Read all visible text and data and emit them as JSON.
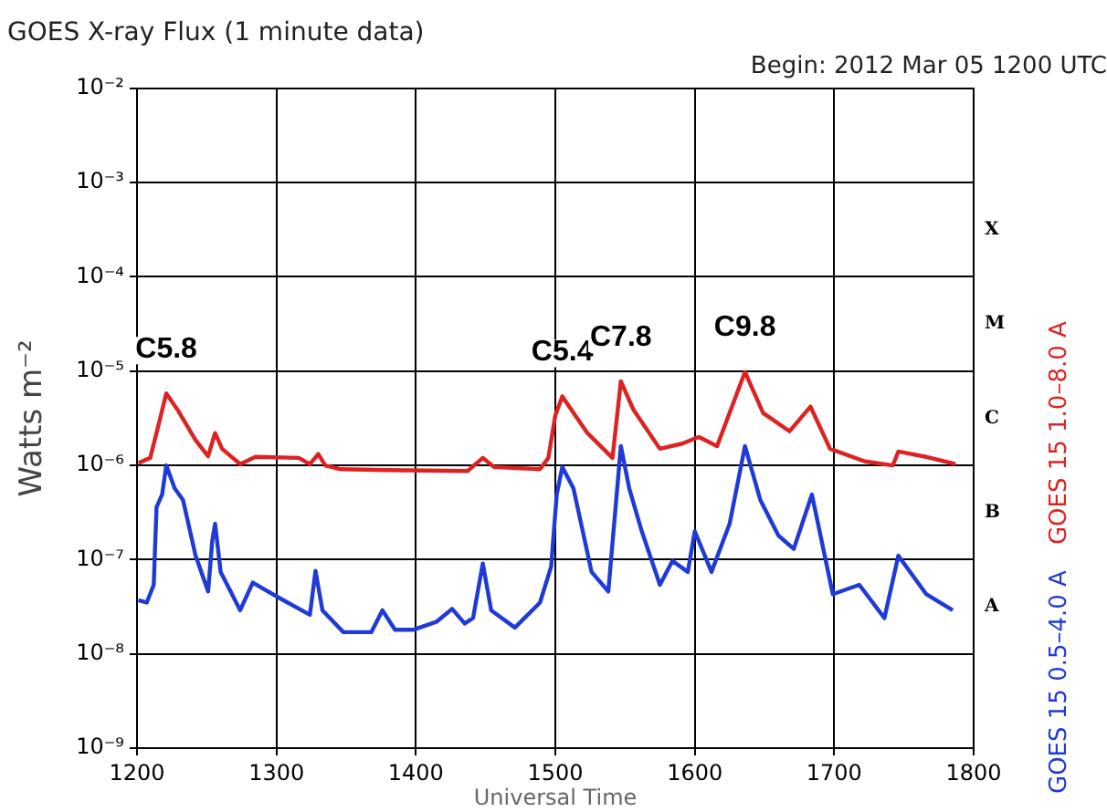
{
  "chart_data": {
    "type": "line",
    "title": "GOES X-ray Flux (1 minute data)",
    "subtitle": "Begin: 2012 Mar 05 1200 UTC",
    "xlabel": "Universal Time",
    "ylabel": "Watts m⁻²",
    "log": "y",
    "grid": true,
    "legend": "right",
    "xlim": [
      1200,
      1800
    ],
    "xticks": [
      1200,
      1300,
      1400,
      1500,
      1600,
      1700,
      1800
    ],
    "ylim": [
      1e-09,
      0.01
    ],
    "yticks": [
      {
        "value": 1e-09,
        "label": "10⁻⁹"
      },
      {
        "value": 1e-08,
        "label": "10⁻⁸"
      },
      {
        "value": 1e-07,
        "label": "10⁻⁷"
      },
      {
        "value": 1e-06,
        "label": "10⁻⁶"
      },
      {
        "value": 1e-05,
        "label": "10⁻⁵"
      },
      {
        "value": 0.0001,
        "label": "10⁻⁴"
      },
      {
        "value": 0.001,
        "label": "10⁻³"
      },
      {
        "value": 0.01,
        "label": "10⁻²"
      }
    ],
    "series": [
      {
        "name": "GOES 15 1.0–8.0 A",
        "color": "#dd2222",
        "x": [
          1201,
          1209.5,
          1216,
          1221,
          1229,
          1242,
          1251,
          1256,
          1261,
          1274,
          1285,
          1316,
          1324,
          1330,
          1335,
          1346,
          1380,
          1437,
          1448,
          1456,
          1489,
          1495,
          1500,
          1505,
          1523,
          1541,
          1547,
          1556,
          1575,
          1591,
          1603,
          1616,
          1636,
          1649,
          1668,
          1683,
          1697,
          1722,
          1742,
          1746,
          1766,
          1787
        ],
        "values": [
          1.06e-06,
          1.2e-06,
          2.9e-06,
          5.8e-06,
          3.9e-06,
          1.85e-06,
          1.25e-06,
          2.2e-06,
          1.5e-06,
          1.03e-06,
          1.23e-06,
          1.2e-06,
          1.03e-06,
          1.32e-06,
          1e-06,
          9.1e-07,
          8.9e-07,
          8.7e-07,
          1.2e-06,
          9.6e-07,
          9.1e-07,
          1.2e-06,
          3.4e-06,
          5.4e-06,
          2.2e-06,
          1.2e-06,
          7.8e-06,
          3.9e-06,
          1.5e-06,
          1.7e-06,
          2e-06,
          1.6e-06,
          9.8e-06,
          3.6e-06,
          2.3e-06,
          4.2e-06,
          1.5e-06,
          1.1e-06,
          1e-06,
          1.4e-06,
          1.23e-06,
          1.03e-06
        ]
      },
      {
        "name": "GOES 15 0.5–4.0 A",
        "color": "#1f3ad6",
        "x": [
          1201,
          1207,
          1212,
          1214,
          1218,
          1221,
          1227,
          1233,
          1242,
          1251,
          1254,
          1256,
          1260,
          1274,
          1283,
          1301,
          1324,
          1328,
          1333,
          1348,
          1368,
          1376,
          1385,
          1398,
          1415,
          1426,
          1435,
          1441,
          1448,
          1454,
          1471,
          1489,
          1497,
          1501,
          1505,
          1513,
          1526,
          1538,
          1547,
          1553,
          1562,
          1575,
          1584,
          1595,
          1600,
          1612,
          1625,
          1636,
          1647,
          1660,
          1671,
          1684,
          1699,
          1718,
          1736,
          1746,
          1766,
          1785
        ],
        "values": [
          3.7e-08,
          3.5e-08,
          5.4e-08,
          3.6e-07,
          4.9e-07,
          1e-06,
          5.7e-07,
          4.3e-07,
          1.1e-07,
          4.6e-08,
          1.6e-07,
          2.4e-07,
          7.4e-08,
          2.9e-08,
          5.7e-08,
          4e-08,
          2.6e-08,
          7.6e-08,
          2.9e-08,
          1.7e-08,
          1.7e-08,
          2.9e-08,
          1.8e-08,
          1.8e-08,
          2.2e-08,
          3e-08,
          2.1e-08,
          2.4e-08,
          9.1e-08,
          2.9e-08,
          1.9e-08,
          3.5e-08,
          8.4e-08,
          4.9e-07,
          9.6e-07,
          5.7e-07,
          7.4e-08,
          4.6e-08,
          1.6e-06,
          5.7e-07,
          2e-07,
          5.4e-08,
          9.7e-08,
          7.4e-08,
          2e-07,
          7.4e-08,
          2.4e-07,
          1.6e-06,
          4.3e-07,
          1.8e-07,
          1.3e-07,
          4.9e-07,
          4.3e-08,
          5.4e-08,
          2.4e-08,
          1.1e-07,
          4.3e-08,
          2.9e-08
        ]
      }
    ],
    "annotations": [
      {
        "text": "C5.8",
        "x": 1221,
        "y": 5.8e-06
      },
      {
        "text": "C5.4",
        "x": 1505,
        "y": 5.4e-06
      },
      {
        "text": "C7.8",
        "x": 1547,
        "y": 7.8e-06
      },
      {
        "text": "C9.8",
        "x": 1636,
        "y": 9.8e-06
      },
      "A",
      "B",
      "C",
      "M",
      "X"
    ]
  }
}
